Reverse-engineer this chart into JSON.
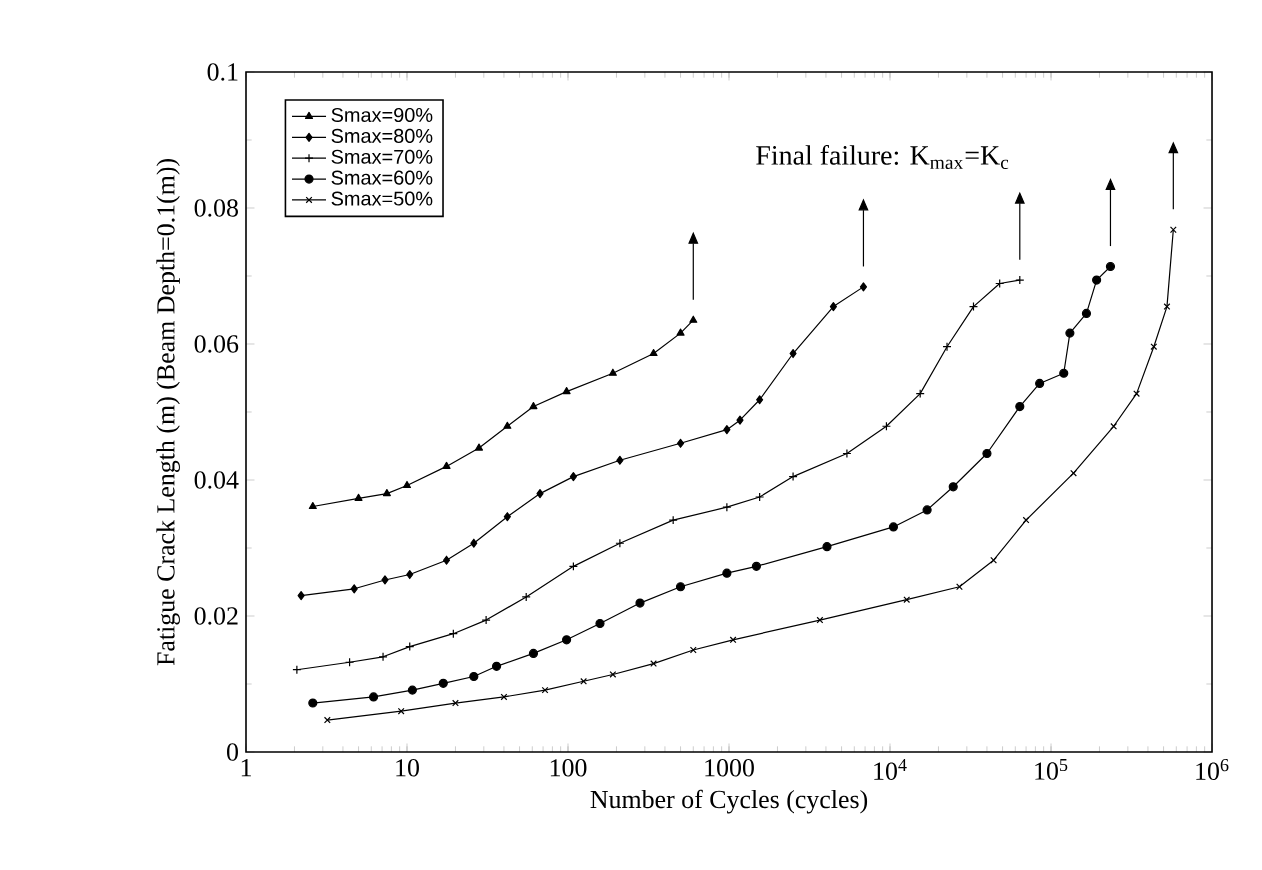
{
  "chart_data": {
    "type": "line",
    "xlabel": "Number of Cycles (cycles)",
    "ylabel": "Fatigue Crack Length (m) (Beam Depth=0.1(m))",
    "annotations": [
      "Final failure: K$_{max}$=K$_{c}$"
    ],
    "log": "x",
    "xlim": [
      1,
      1000000
    ],
    "ylim": [
      0,
      0.1
    ],
    "xticks": [
      1,
      10,
      100,
      1000,
      {
        "value": 10000,
        "label": "10$^{4}$"
      },
      {
        "value": 100000,
        "label": "10$^{5}$"
      },
      {
        "value": 1000000,
        "label": "10$^{6}$"
      }
    ],
    "yticks": [
      0,
      0.02,
      0.04,
      0.06,
      0.08,
      0.1
    ],
    "grid": false,
    "legend": "top left",
    "series": [
      {
        "name": "Smax=90%",
        "color": "#000000",
        "marker": "triangle",
        "x": [
          2.6,
          5,
          7.5,
          10,
          17.6,
          28,
          42,
          61,
          98,
          190,
          340,
          500,
          600
        ],
        "values": [
          0.0361,
          0.0373,
          0.038,
          0.0392,
          0.042,
          0.0447,
          0.0479,
          0.0508,
          0.053,
          0.0557,
          0.0586,
          0.0616,
          0.0635
        ]
      },
      {
        "name": "Smax=80%",
        "color": "#000000",
        "marker": "diamond",
        "x": [
          2.2,
          4.7,
          7.3,
          10.4,
          17.6,
          26,
          42,
          67,
          108,
          210,
          500,
          970,
          1170,
          1550,
          2500,
          4450,
          6840
        ],
        "values": [
          0.023,
          0.024,
          0.0253,
          0.0261,
          0.0282,
          0.0307,
          0.0346,
          0.038,
          0.0405,
          0.0429,
          0.0454,
          0.0474,
          0.0488,
          0.0518,
          0.0586,
          0.0655,
          0.0684
        ]
      },
      {
        "name": "Smax=70%",
        "color": "#000000",
        "marker": "plus",
        "x": [
          2.07,
          4.4,
          7.1,
          10.4,
          19.4,
          31,
          55,
          108,
          210,
          450,
          970,
          1550,
          2500,
          5400,
          9500,
          15400,
          22600,
          33000,
          48000,
          64000
        ],
        "values": [
          0.0121,
          0.0132,
          0.014,
          0.0155,
          0.0174,
          0.0194,
          0.0228,
          0.0273,
          0.0307,
          0.0341,
          0.036,
          0.0375,
          0.0405,
          0.0439,
          0.0479,
          0.0527,
          0.0596,
          0.0655,
          0.0689,
          0.0694
        ]
      },
      {
        "name": "Smax=60%",
        "color": "#000000",
        "marker": "circle",
        "x": [
          2.6,
          6.2,
          10.8,
          16.8,
          26,
          36,
          61,
          98,
          158,
          280,
          500,
          970,
          1480,
          4060,
          10500,
          17000,
          24700,
          40000,
          64000,
          85000,
          120000,
          131000,
          166000,
          192000,
          234000
        ],
        "values": [
          0.0072,
          0.0081,
          0.0091,
          0.0101,
          0.0111,
          0.0126,
          0.0145,
          0.0165,
          0.0189,
          0.0219,
          0.0243,
          0.0263,
          0.0273,
          0.0302,
          0.0331,
          0.0356,
          0.039,
          0.0439,
          0.0508,
          0.0542,
          0.0557,
          0.0616,
          0.0645,
          0.0694,
          0.0714
        ]
      },
      {
        "name": "Smax=50%",
        "color": "#000000",
        "marker": "cross",
        "x": [
          3.2,
          9.2,
          20,
          40,
          72,
          125,
          190,
          340,
          600,
          1060,
          3670,
          12700,
          27000,
          44000,
          70000,
          138000,
          245000,
          340000,
          435000,
          525000,
          575000
        ],
        "values": [
          0.0047,
          0.006,
          0.0072,
          0.0081,
          0.0091,
          0.0104,
          0.0114,
          0.013,
          0.015,
          0.0165,
          0.0194,
          0.0224,
          0.0243,
          0.0282,
          0.0341,
          0.041,
          0.0479,
          0.0527,
          0.0596,
          0.0655,
          0.0768
        ]
      }
    ]
  }
}
